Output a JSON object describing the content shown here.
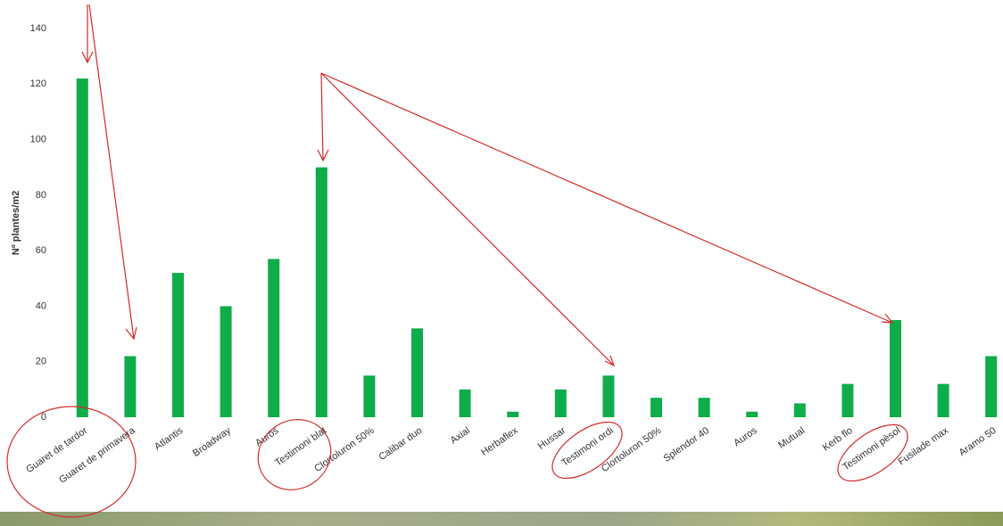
{
  "chart_data": {
    "type": "bar",
    "y_label": "Nº plantes/m2",
    "categories": [
      "Guaret de tardor",
      "Guaret de primavera",
      "Atlantis",
      "Broadway",
      "Auros",
      "Testimoni blat",
      "Clortoluron 50%",
      "Calibar duo",
      "Axial",
      "Herbaflex",
      "Hussar",
      "Testimoni ordi",
      "Clortoluron 50%",
      "Splendor 40",
      "Auros",
      "Mutual",
      "Kerb flo",
      "Testimoni pèsol",
      "Fusilade max",
      "Aramo 50"
    ],
    "values": [
      122,
      22,
      52,
      40,
      57,
      90,
      15,
      32,
      10,
      2,
      10,
      15,
      7,
      7,
      2,
      5,
      12,
      35,
      12,
      22
    ],
    "color": "#0ead4a",
    "ylim": [
      0,
      140
    ],
    "yticks": [
      0,
      20,
      40,
      60,
      80,
      100,
      120,
      140
    ],
    "grid": false
  }
}
